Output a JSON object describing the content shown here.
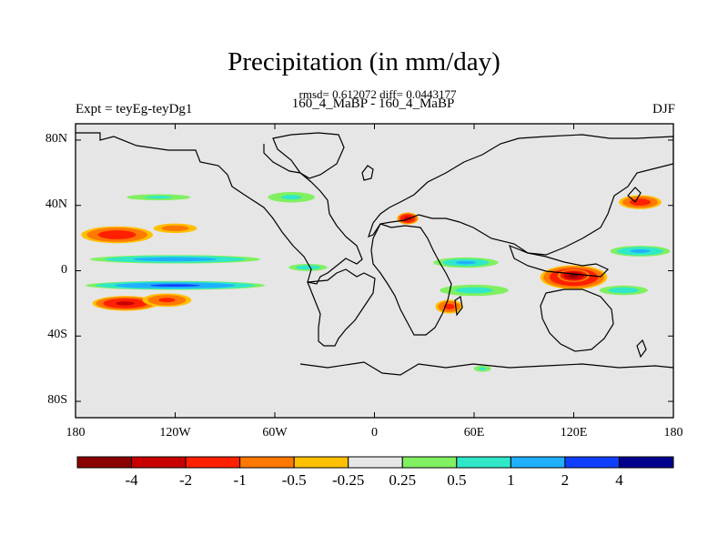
{
  "chart_data": {
    "type": "heatmap",
    "title": "Precipitation (in mm/day)",
    "stats_line": "rmsd= 0.612072 diff= 0.0443177",
    "subtitle_left": "Expt = teyEg-teyDg1",
    "subtitle_center": "160_4_MaBP - 160_4_MaBP",
    "subtitle_right": "DJF",
    "x_range": [
      -180,
      180
    ],
    "y_range": [
      -90,
      90
    ],
    "lat_ticks": [
      {
        "value": 80,
        "label": "80N"
      },
      {
        "value": 40,
        "label": "40N"
      },
      {
        "value": 0,
        "label": "0"
      },
      {
        "value": -40,
        "label": "40S"
      },
      {
        "value": -80,
        "label": "80S"
      }
    ],
    "lon_ticks": [
      {
        "value": -180,
        "label": "180"
      },
      {
        "value": -120,
        "label": "120W"
      },
      {
        "value": -60,
        "label": "60W"
      },
      {
        "value": 0,
        "label": "0"
      },
      {
        "value": 60,
        "label": "60E"
      },
      {
        "value": 120,
        "label": "120E"
      },
      {
        "value": 180,
        "label": "180"
      }
    ],
    "levels": [
      -4,
      -2,
      -1,
      -0.5,
      -0.25,
      0.25,
      0.5,
      1,
      2,
      4
    ],
    "level_labels": [
      "-4",
      "-2",
      "-1",
      "-0.5",
      "-0.25",
      "0.25",
      "0.5",
      "1",
      "2",
      "4"
    ],
    "colors": [
      "#8b0000",
      "#c80000",
      "#ff2000",
      "#ff7800",
      "#ffc000",
      "#e6e6e6",
      "#80f060",
      "#30e8c8",
      "#20b0ff",
      "#1040ff",
      "#00008c"
    ],
    "background_color": "#e6e6e6",
    "anomaly_regions": [
      {
        "name": "pacific-south-dry",
        "lon": -150,
        "lat": -20,
        "rlon": 22,
        "rlat": 5,
        "value": -2.2
      },
      {
        "name": "pacific-south-dry-tail",
        "lon": -125,
        "lat": -18,
        "rlon": 18,
        "rlat": 5,
        "value": -1.2
      },
      {
        "name": "pacific-north-dry",
        "lon": -155,
        "lat": 22,
        "rlon": 25,
        "rlat": 6,
        "value": -1.6
      },
      {
        "name": "pacific-north-dry-east",
        "lon": -120,
        "lat": 26,
        "rlon": 18,
        "rlat": 4,
        "value": -0.8
      },
      {
        "name": "pacific-eq-north-wet",
        "lon": -120,
        "lat": 7,
        "rlon": 60,
        "rlat": 3,
        "value": 1.5
      },
      {
        "name": "pacific-eq-south-wet",
        "lon": -120,
        "lat": -9,
        "rlon": 60,
        "rlat": 3,
        "value": 2.2
      },
      {
        "name": "pacific-northeast-band",
        "lon": -130,
        "lat": 45,
        "rlon": 30,
        "rlat": 3,
        "value": 0.6
      },
      {
        "name": "atlantic-north-wet",
        "lon": -50,
        "lat": 45,
        "rlon": 22,
        "rlat": 5,
        "value": 0.6
      },
      {
        "name": "atlantic-eq-wet",
        "lon": -40,
        "lat": 2,
        "rlon": 16,
        "rlat": 3,
        "value": 0.8
      },
      {
        "name": "europe-dry",
        "lon": 20,
        "lat": 32,
        "rlon": 7,
        "rlat": 4,
        "value": -2.5
      },
      {
        "name": "africa-wet-band",
        "lon": 55,
        "lat": 5,
        "rlon": 25,
        "rlat": 4,
        "value": 1.0
      },
      {
        "name": "indian-ocean-wet",
        "lon": 60,
        "lat": -12,
        "rlon": 30,
        "rlat": 5,
        "value": 0.7
      },
      {
        "name": "southern-africa-dry",
        "lon": 45,
        "lat": -22,
        "rlon": 10,
        "rlat": 5,
        "value": -1.3
      },
      {
        "name": "maritime-continent-dry",
        "lon": 120,
        "lat": -4,
        "rlon": 22,
        "rlat": 8,
        "value": -2.6
      },
      {
        "name": "maritime-continent-core",
        "lon": 120,
        "lat": -3,
        "rlon": 10,
        "rlat": 4,
        "value": -4.5
      },
      {
        "name": "west-pacific-dry",
        "lon": 160,
        "lat": 42,
        "rlon": 15,
        "rlat": 5,
        "value": -1.5
      },
      {
        "name": "west-pacific-wet",
        "lon": 160,
        "lat": 12,
        "rlon": 22,
        "rlat": 4,
        "value": 1.2
      },
      {
        "name": "australia-wet",
        "lon": 150,
        "lat": -12,
        "rlon": 20,
        "rlat": 4,
        "value": 0.8
      },
      {
        "name": "southern-ocean-wet",
        "lon": 65,
        "lat": -60,
        "rlon": 8,
        "rlat": 3,
        "value": 0.6
      }
    ]
  }
}
